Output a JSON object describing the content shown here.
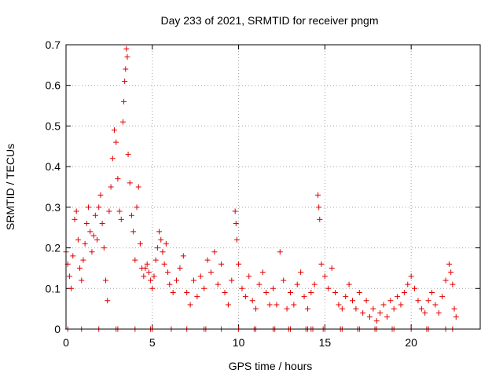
{
  "chart_data": {
    "type": "scatter",
    "title": "Day 233 of 2021, SRMTID for receiver pngm",
    "xlabel": "GPS time / hours",
    "ylabel": "SRMTID / TECUs",
    "xlim": [
      0,
      24
    ],
    "ylim": [
      0,
      0.7
    ],
    "xticks": [
      0,
      5,
      10,
      15,
      20
    ],
    "xtick_labels": [
      "0",
      "5",
      "10",
      "15",
      "20"
    ],
    "yticks": [
      0,
      0.1,
      0.2,
      0.3,
      0.4,
      0.5,
      0.6,
      0.7
    ],
    "ytick_labels": [
      "0",
      "0.1",
      "0.2",
      "0.3",
      "0.4",
      "0.5",
      "0.6",
      "0.7"
    ],
    "grid": true,
    "marker": "+",
    "color": "#e00000",
    "series": [
      {
        "name": "SRMTID",
        "points": [
          [
            0.0,
            0.19
          ],
          [
            0.1,
            0.16
          ],
          [
            0.2,
            0.13
          ],
          [
            0.3,
            0.1
          ],
          [
            0.4,
            0.18
          ],
          [
            0.5,
            0.27
          ],
          [
            0.6,
            0.29
          ],
          [
            0.7,
            0.22
          ],
          [
            0.8,
            0.15
          ],
          [
            0.9,
            0.12
          ],
          [
            1.0,
            0.17
          ],
          [
            1.1,
            0.21
          ],
          [
            1.2,
            0.26
          ],
          [
            1.3,
            0.3
          ],
          [
            1.4,
            0.24
          ],
          [
            1.5,
            0.19
          ],
          [
            1.6,
            0.23
          ],
          [
            1.7,
            0.28
          ],
          [
            1.8,
            0.22
          ],
          [
            1.9,
            0.3
          ],
          [
            2.0,
            0.33
          ],
          [
            2.1,
            0.26
          ],
          [
            2.2,
            0.2
          ],
          [
            2.3,
            0.12
          ],
          [
            2.4,
            0.07
          ],
          [
            2.5,
            0.29
          ],
          [
            2.6,
            0.35
          ],
          [
            2.7,
            0.42
          ],
          [
            2.8,
            0.49
          ],
          [
            2.9,
            0.46
          ],
          [
            3.0,
            0.37
          ],
          [
            3.1,
            0.29
          ],
          [
            3.2,
            0.27
          ],
          [
            3.3,
            0.51
          ],
          [
            3.35,
            0.56
          ],
          [
            3.4,
            0.61
          ],
          [
            3.45,
            0.64
          ],
          [
            3.5,
            0.69
          ],
          [
            3.55,
            0.67
          ],
          [
            3.6,
            0.43
          ],
          [
            3.7,
            0.36
          ],
          [
            3.8,
            0.28
          ],
          [
            3.9,
            0.24
          ],
          [
            4.0,
            0.17
          ],
          [
            4.1,
            0.3
          ],
          [
            4.2,
            0.35
          ],
          [
            4.3,
            0.21
          ],
          [
            4.4,
            0.15
          ],
          [
            4.5,
            0.13
          ],
          [
            4.6,
            0.15
          ],
          [
            4.7,
            0.16
          ],
          [
            4.8,
            0.14
          ],
          [
            4.9,
            0.12
          ],
          [
            5.0,
            0.1
          ],
          [
            5.1,
            0.13
          ],
          [
            5.2,
            0.17
          ],
          [
            5.3,
            0.2
          ],
          [
            5.4,
            0.24
          ],
          [
            5.5,
            0.22
          ],
          [
            5.6,
            0.19
          ],
          [
            5.7,
            0.16
          ],
          [
            5.8,
            0.21
          ],
          [
            5.9,
            0.14
          ],
          [
            6.0,
            0.11
          ],
          [
            6.2,
            0.09
          ],
          [
            6.4,
            0.12
          ],
          [
            6.6,
            0.15
          ],
          [
            6.8,
            0.18
          ],
          [
            7.0,
            0.09
          ],
          [
            7.2,
            0.06
          ],
          [
            7.4,
            0.12
          ],
          [
            7.6,
            0.08
          ],
          [
            7.8,
            0.13
          ],
          [
            8.0,
            0.1
          ],
          [
            8.2,
            0.17
          ],
          [
            8.4,
            0.14
          ],
          [
            8.6,
            0.19
          ],
          [
            8.8,
            0.11
          ],
          [
            9.0,
            0.16
          ],
          [
            9.2,
            0.09
          ],
          [
            9.4,
            0.06
          ],
          [
            9.6,
            0.12
          ],
          [
            9.8,
            0.29
          ],
          [
            9.85,
            0.26
          ],
          [
            9.9,
            0.22
          ],
          [
            10.0,
            0.16
          ],
          [
            10.2,
            0.1
          ],
          [
            10.4,
            0.08
          ],
          [
            10.6,
            0.13
          ],
          [
            10.8,
            0.07
          ],
          [
            11.0,
            0.05
          ],
          [
            11.2,
            0.11
          ],
          [
            11.4,
            0.14
          ],
          [
            11.6,
            0.09
          ],
          [
            11.8,
            0.06
          ],
          [
            12.0,
            0.1
          ],
          [
            12.2,
            0.06
          ],
          [
            12.4,
            0.19
          ],
          [
            12.6,
            0.12
          ],
          [
            12.8,
            0.05
          ],
          [
            13.0,
            0.09
          ],
          [
            13.2,
            0.06
          ],
          [
            13.4,
            0.11
          ],
          [
            13.6,
            0.14
          ],
          [
            13.8,
            0.08
          ],
          [
            14.0,
            0.05
          ],
          [
            14.2,
            0.09
          ],
          [
            14.4,
            0.11
          ],
          [
            14.6,
            0.33
          ],
          [
            14.65,
            0.3
          ],
          [
            14.7,
            0.27
          ],
          [
            14.8,
            0.16
          ],
          [
            15.0,
            0.13
          ],
          [
            15.2,
            0.1
          ],
          [
            15.4,
            0.15
          ],
          [
            15.6,
            0.09
          ],
          [
            15.8,
            0.06
          ],
          [
            16.0,
            0.05
          ],
          [
            16.2,
            0.08
          ],
          [
            16.4,
            0.11
          ],
          [
            16.6,
            0.07
          ],
          [
            16.8,
            0.05
          ],
          [
            17.0,
            0.09
          ],
          [
            17.2,
            0.04
          ],
          [
            17.4,
            0.07
          ],
          [
            17.6,
            0.03
          ],
          [
            17.8,
            0.05
          ],
          [
            18.0,
            0.02
          ],
          [
            18.2,
            0.04
          ],
          [
            18.4,
            0.06
          ],
          [
            18.6,
            0.03
          ],
          [
            18.8,
            0.07
          ],
          [
            19.0,
            0.05
          ],
          [
            19.2,
            0.08
          ],
          [
            19.4,
            0.06
          ],
          [
            19.6,
            0.09
          ],
          [
            19.8,
            0.11
          ],
          [
            20.0,
            0.13
          ],
          [
            20.2,
            0.1
          ],
          [
            20.4,
            0.07
          ],
          [
            20.6,
            0.05
          ],
          [
            20.8,
            0.04
          ],
          [
            21.0,
            0.07
          ],
          [
            21.2,
            0.09
          ],
          [
            21.4,
            0.06
          ],
          [
            21.6,
            0.04
          ],
          [
            21.8,
            0.08
          ],
          [
            22.0,
            0.12
          ],
          [
            22.2,
            0.16
          ],
          [
            22.3,
            0.14
          ],
          [
            22.4,
            0.11
          ],
          [
            22.5,
            0.05
          ],
          [
            22.6,
            0.03
          ],
          [
            0.1,
            0.0
          ],
          [
            0.9,
            0.0
          ],
          [
            1.9,
            0.0
          ],
          [
            2.9,
            0.0
          ],
          [
            3.0,
            0.0
          ],
          [
            4.0,
            0.0
          ],
          [
            4.9,
            0.0
          ],
          [
            5.0,
            0.0
          ],
          [
            6.1,
            0.0
          ],
          [
            7.0,
            0.0
          ],
          [
            8.0,
            0.0
          ],
          [
            8.1,
            0.0
          ],
          [
            9.0,
            0.0
          ],
          [
            10.0,
            0.0
          ],
          [
            10.9,
            0.0
          ],
          [
            11.0,
            0.0
          ],
          [
            12.0,
            0.0
          ],
          [
            12.1,
            0.0
          ],
          [
            12.9,
            0.0
          ],
          [
            13.0,
            0.0
          ],
          [
            13.9,
            0.0
          ],
          [
            14.0,
            0.0
          ],
          [
            14.2,
            0.0
          ],
          [
            14.3,
            0.0
          ],
          [
            14.9,
            0.0
          ],
          [
            15.0,
            0.0
          ],
          [
            15.9,
            0.0
          ],
          [
            16.0,
            0.0
          ],
          [
            16.9,
            0.0
          ],
          [
            17.0,
            0.0
          ],
          [
            17.9,
            0.0
          ],
          [
            18.0,
            0.0
          ],
          [
            18.9,
            0.0
          ],
          [
            19.0,
            0.0
          ],
          [
            20.0,
            0.0
          ],
          [
            20.9,
            0.0
          ],
          [
            21.0,
            0.0
          ],
          [
            22.0,
            0.0
          ],
          [
            22.4,
            0.0
          ]
        ]
      }
    ]
  }
}
